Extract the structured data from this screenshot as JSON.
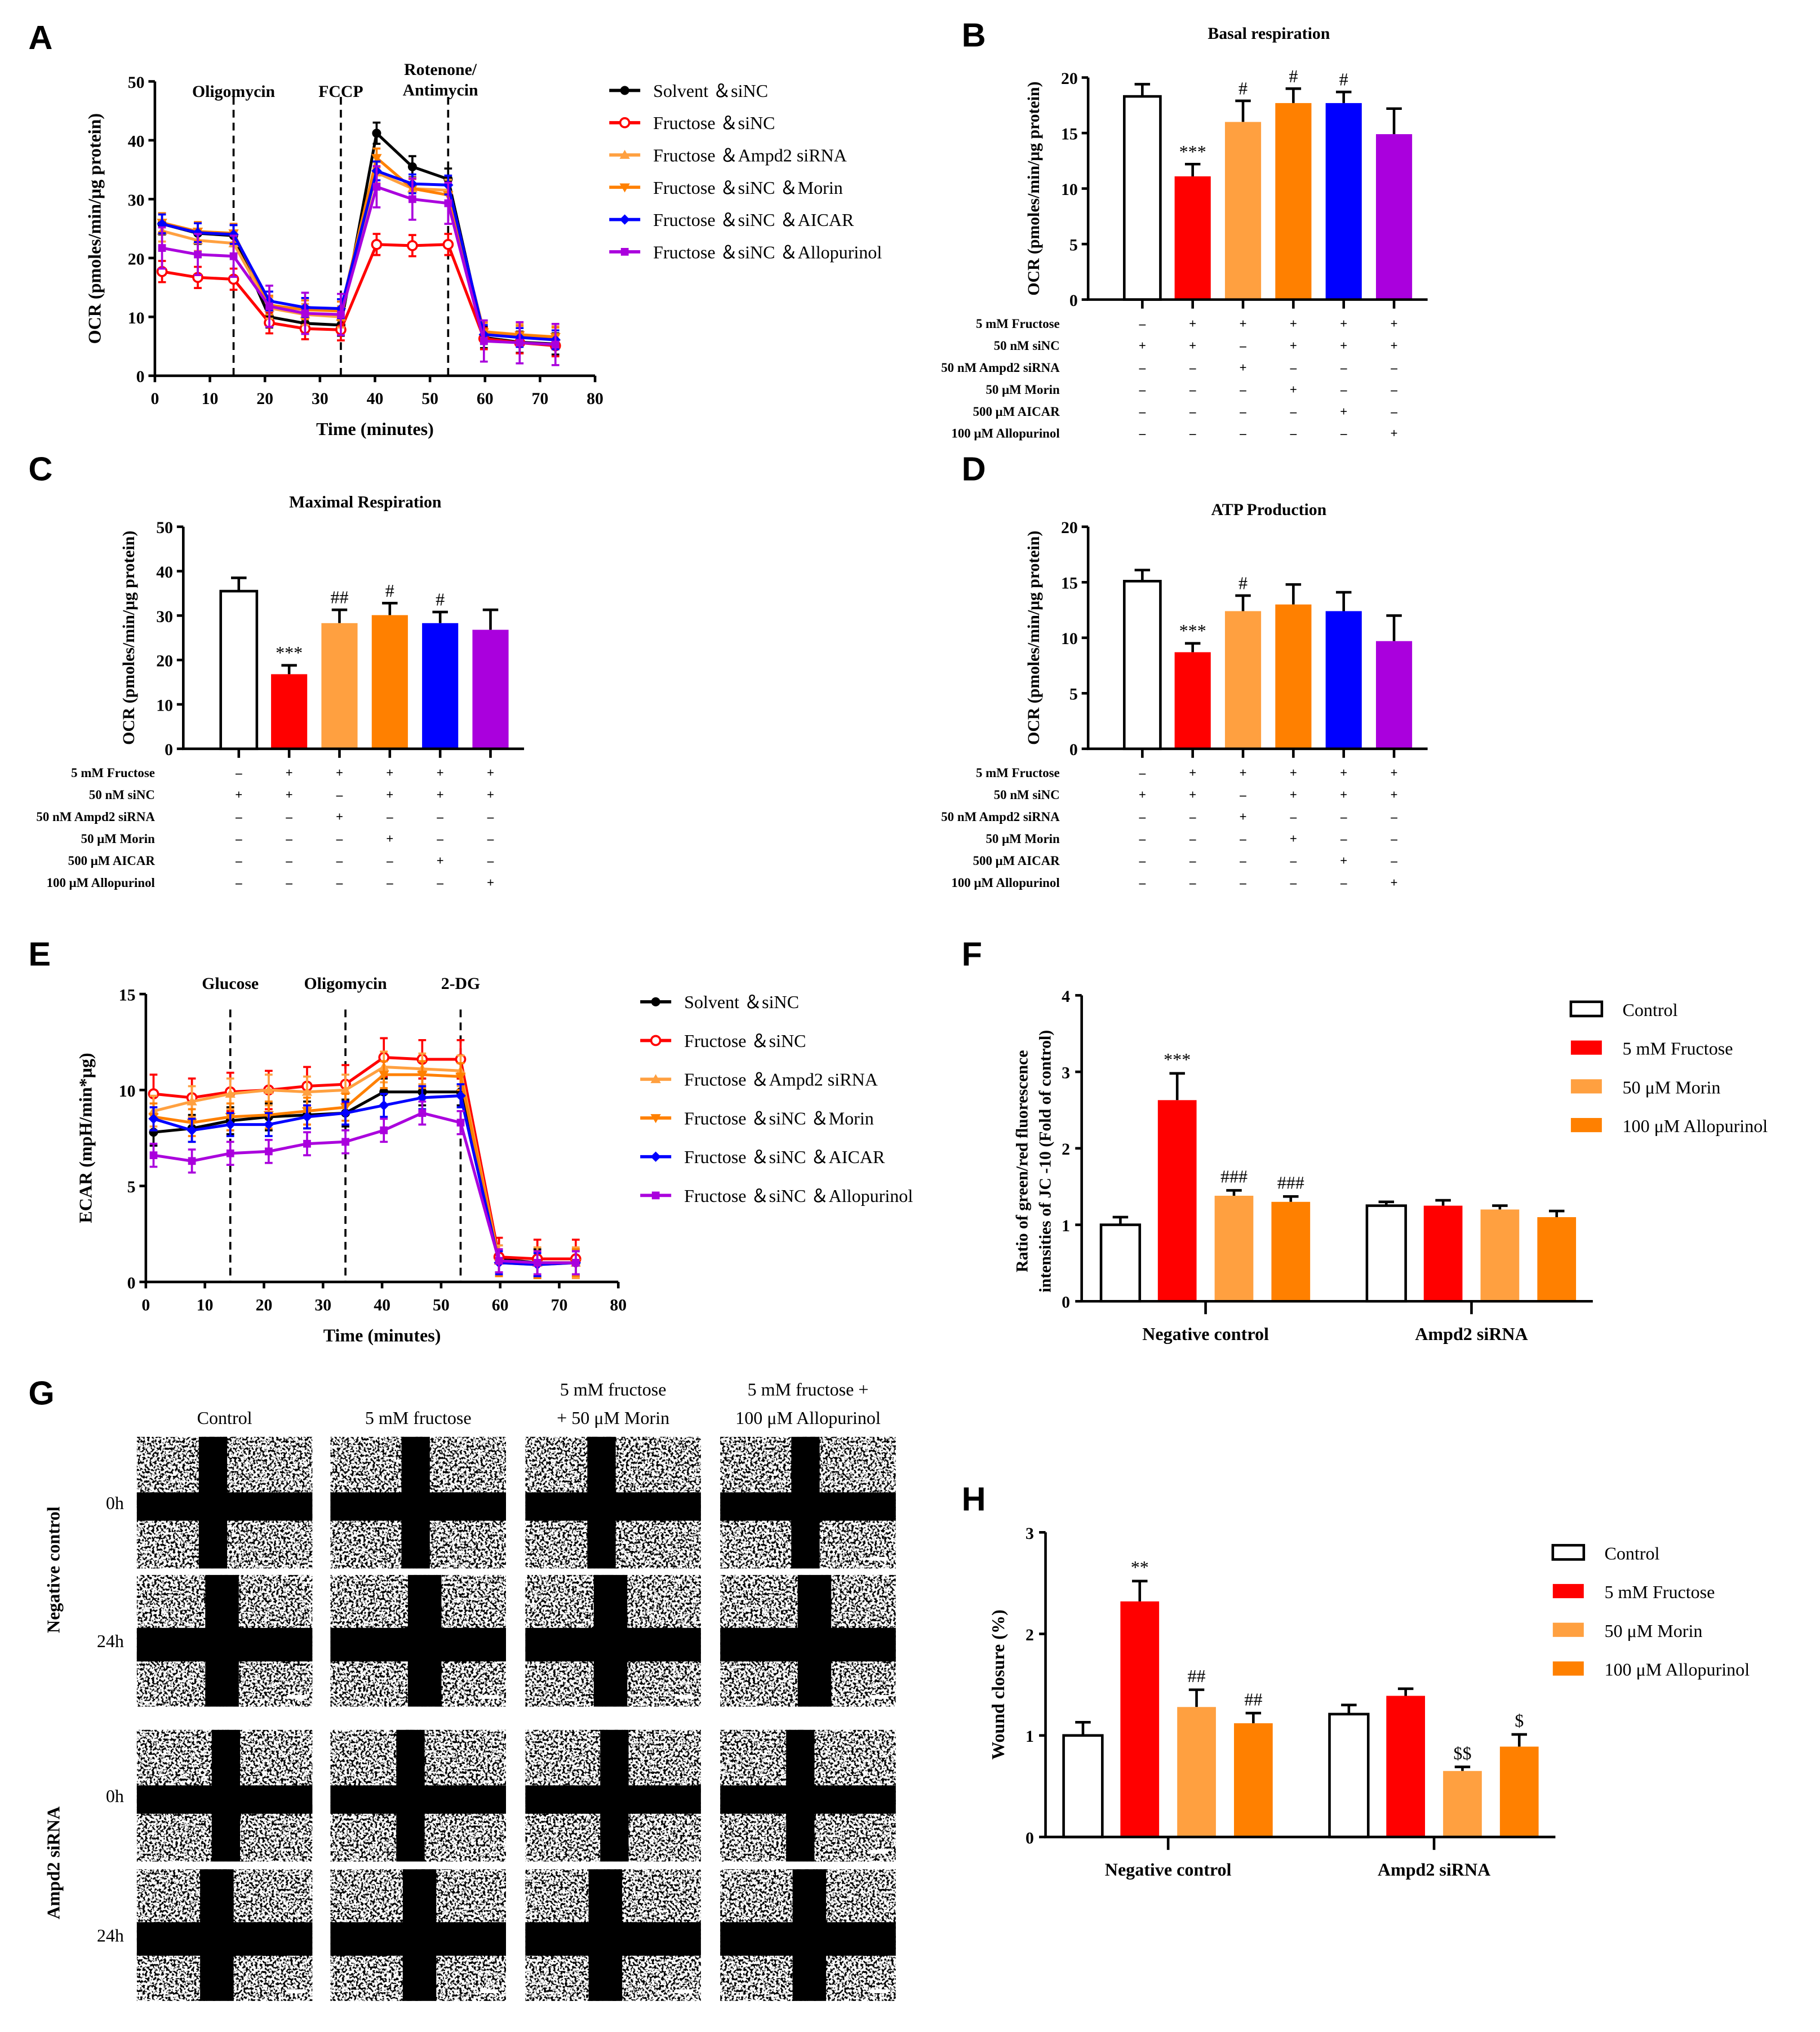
{
  "panel_labels": [
    "A",
    "B",
    "C",
    "D",
    "E",
    "F",
    "G",
    "H"
  ],
  "chart_data": [
    {
      "id": "A",
      "type": "line",
      "xlabel": "Time (minutes)",
      "ylabel": "OCR (pmoles/min/μg protein)",
      "xlim": [
        0,
        80
      ],
      "ylim": [
        0,
        50
      ],
      "xticks": [
        "0",
        "10",
        "20",
        "30",
        "40",
        "50",
        "60",
        "70",
        "80"
      ],
      "yticks": [
        "0",
        "10",
        "20",
        "30",
        "40",
        "50"
      ],
      "markers": [
        {
          "x": 14.3,
          "label": "Oligomycin"
        },
        {
          "x": 33.8,
          "label": "FCCP"
        },
        {
          "x": 53.3,
          "label": "Rotenone/",
          "label2": "Antimycin"
        }
      ],
      "x": [
        1.3,
        7.8,
        14.3,
        20.8,
        27.3,
        33.8,
        40.3,
        46.8,
        53.3,
        59.8,
        66.3,
        72.8
      ],
      "series": [
        {
          "name": "Solvent ＆siNC",
          "color": "#000000",
          "marker": "circle",
          "err": 1.8,
          "values": [
            25.8,
            24.2,
            23.8,
            10,
            8.9,
            8.6,
            41.2,
            35.5,
            33.4,
            6.5,
            5.7,
            5.4
          ]
        },
        {
          "name": "Fructose ＆siNC",
          "color": "#ff0000",
          "marker": "open-circle",
          "err": 1.8,
          "values": [
            17.7,
            16.7,
            16.4,
            9,
            8,
            7.8,
            22.3,
            22.1,
            22.3,
            6.3,
            5.6,
            5.1
          ]
        },
        {
          "name": "Fructose ＆Ampd2 siRNA",
          "color": "#ffa040",
          "marker": "triangle-up",
          "err": 1.8,
          "values": [
            24.6,
            23,
            22.5,
            11.5,
            10.4,
            10,
            34.5,
            31.8,
            31.5,
            7.5,
            7,
            6.6
          ]
        },
        {
          "name": "Fructose ＆siNC ＆Morin",
          "color": "#ff8000",
          "marker": "triangle-down",
          "err": 1.6,
          "values": [
            26,
            24.5,
            24.2,
            12,
            11.2,
            11,
            37,
            31.8,
            30.7,
            7.4,
            6.9,
            6.6
          ]
        },
        {
          "name": "Fructose ＆siNC ＆AICAR",
          "color": "#0000ff",
          "marker": "diamond",
          "err": 1.6,
          "values": [
            25.8,
            24.3,
            24,
            12.7,
            11.6,
            11.4,
            34.8,
            32.6,
            32.4,
            7,
            6.5,
            6.1
          ]
        },
        {
          "name": "Fructose ＆siNC ＆Allopurinol",
          "color": "#aa00dd",
          "marker": "square",
          "err": 3.5,
          "values": [
            21.7,
            20.6,
            20.3,
            11.8,
            10.6,
            10.4,
            32.1,
            30,
            29.3,
            5.9,
            5.6,
            5.3
          ]
        }
      ]
    },
    {
      "id": "B",
      "type": "bar",
      "title": "Basal respiration",
      "ylabel": "OCR (pmoles/min/μg protein)",
      "ylim": [
        0,
        20
      ],
      "yticks": [
        "0",
        "5",
        "10",
        "15",
        "20"
      ],
      "values": [
        18.3,
        11.1,
        16.0,
        17.7,
        17.7,
        14.9
      ],
      "errors": [
        1.1,
        1.1,
        1.9,
        1.3,
        1.0,
        2.3
      ],
      "colors": [
        "#ffffff",
        "#ff0000",
        "#ffa040",
        "#ff8000",
        "#0000ff",
        "#aa00dd"
      ],
      "annotations": [
        "",
        "***",
        "#",
        "#",
        "#",
        ""
      ],
      "treatments": [
        {
          "label": "5 mM Fructose",
          "signs": [
            "–",
            "+",
            "+",
            "+",
            "+",
            "+"
          ]
        },
        {
          "label": "50 nM siNC",
          "signs": [
            "+",
            "+",
            "–",
            "+",
            "+",
            "+"
          ]
        },
        {
          "label": "50 nM Ampd2 siRNA",
          "signs": [
            "–",
            "–",
            "+",
            "–",
            "–",
            "–"
          ]
        },
        {
          "label": "50 μM Morin",
          "signs": [
            "–",
            "–",
            "–",
            "+",
            "–",
            "–"
          ]
        },
        {
          "label": "500 μM AICAR",
          "signs": [
            "–",
            "–",
            "–",
            "–",
            "+",
            "–"
          ]
        },
        {
          "label": "100 μM Allopurinol",
          "signs": [
            "–",
            "–",
            "–",
            "–",
            "–",
            "+"
          ]
        }
      ]
    },
    {
      "id": "C",
      "type": "bar",
      "title": "Maximal Respiration",
      "ylabel": "OCR (pmoles/min/μg protein)",
      "ylim": [
        0,
        50
      ],
      "yticks": [
        "0",
        "10",
        "20",
        "30",
        "40",
        "50"
      ],
      "values": [
        35.5,
        16.8,
        28.3,
        30.1,
        28.3,
        26.8
      ],
      "errors": [
        3.0,
        2.0,
        3.0,
        2.7,
        2.5,
        4.5
      ],
      "colors": [
        "#ffffff",
        "#ff0000",
        "#ffa040",
        "#ff8000",
        "#0000ff",
        "#aa00dd"
      ],
      "annotations": [
        "",
        "***",
        "##",
        "#",
        "#",
        ""
      ],
      "treatments": [
        {
          "label": "5 mM Fructose",
          "signs": [
            "–",
            "+",
            "+",
            "+",
            "+",
            "+"
          ]
        },
        {
          "label": "50 nM siNC",
          "signs": [
            "+",
            "+",
            "–",
            "+",
            "+",
            "+"
          ]
        },
        {
          "label": "50 nM Ampd2 siRNA",
          "signs": [
            "–",
            "–",
            "+",
            "–",
            "–",
            "–"
          ]
        },
        {
          "label": "50 μM Morin",
          "signs": [
            "–",
            "–",
            "–",
            "+",
            "–",
            "–"
          ]
        },
        {
          "label": "500 μM AICAR",
          "signs": [
            "–",
            "–",
            "–",
            "–",
            "+",
            "–"
          ]
        },
        {
          "label": "100 μM Allopurinol",
          "signs": [
            "–",
            "–",
            "–",
            "–",
            "–",
            "+"
          ]
        }
      ]
    },
    {
      "id": "D",
      "type": "bar",
      "title": "ATP Production",
      "ylabel": "OCR (pmoles/min/μg protein)",
      "ylim": [
        0,
        20
      ],
      "yticks": [
        "0",
        "5",
        "10",
        "15",
        "20"
      ],
      "values": [
        15.1,
        8.7,
        12.4,
        13.0,
        12.4,
        9.7
      ],
      "errors": [
        1.0,
        0.8,
        1.4,
        1.8,
        1.7,
        2.3
      ],
      "colors": [
        "#ffffff",
        "#ff0000",
        "#ffa040",
        "#ff8000",
        "#0000ff",
        "#aa00dd"
      ],
      "annotations": [
        "",
        "***",
        "#",
        "",
        "",
        ""
      ],
      "treatments": [
        {
          "label": "5 mM Fructose",
          "signs": [
            "–",
            "+",
            "+",
            "+",
            "+",
            "+"
          ]
        },
        {
          "label": "50 nM siNC",
          "signs": [
            "+",
            "+",
            "–",
            "+",
            "+",
            "+"
          ]
        },
        {
          "label": "50 nM Ampd2 siRNA",
          "signs": [
            "–",
            "–",
            "+",
            "–",
            "–",
            "–"
          ]
        },
        {
          "label": "50 μM Morin",
          "signs": [
            "–",
            "–",
            "–",
            "+",
            "–",
            "–"
          ]
        },
        {
          "label": "500 μM AICAR",
          "signs": [
            "–",
            "–",
            "–",
            "–",
            "+",
            "–"
          ]
        },
        {
          "label": "100 μM Allopurinol",
          "signs": [
            "–",
            "–",
            "–",
            "–",
            "–",
            "+"
          ]
        }
      ]
    },
    {
      "id": "E",
      "type": "line",
      "xlabel": "Time (minutes)",
      "ylabel": "ECAR (mpH/min*μg)",
      "xlim": [
        0,
        80
      ],
      "ylim": [
        0,
        15
      ],
      "xticks": [
        "0",
        "10",
        "20",
        "30",
        "40",
        "50",
        "60",
        "70",
        "80"
      ],
      "yticks": [
        "0",
        "5",
        "10",
        "15"
      ],
      "markers": [
        {
          "x": 14.3,
          "label": "Glucose"
        },
        {
          "x": 33.8,
          "label": "Oligomycin"
        },
        {
          "x": 53.3,
          "label": "2-DG"
        }
      ],
      "x": [
        1.3,
        7.8,
        14.3,
        20.8,
        27.3,
        33.8,
        40.3,
        46.8,
        53.3,
        59.8,
        66.3,
        72.8
      ],
      "series": [
        {
          "name": "Solvent ＆siNC",
          "color": "#000000",
          "marker": "circle",
          "err": 0.7,
          "values": [
            7.8,
            8.0,
            8.4,
            8.6,
            8.7,
            8.8,
            9.9,
            9.9,
            9.9,
            1.2,
            1.0,
            1.0
          ]
        },
        {
          "name": "Fructose ＆siNC",
          "color": "#ff0000",
          "marker": "open-circle",
          "err": 1.0,
          "values": [
            9.8,
            9.6,
            9.9,
            10.0,
            10.2,
            10.3,
            11.7,
            11.6,
            11.6,
            1.3,
            1.2,
            1.2
          ]
        },
        {
          "name": "Fructose ＆Ampd2 siRNA",
          "color": "#ffa040",
          "marker": "triangle-up",
          "err": 0.8,
          "values": [
            8.9,
            9.4,
            9.8,
            10.0,
            9.9,
            10.0,
            11.2,
            11.1,
            11.0,
            1.1,
            1.0,
            1.0
          ]
        },
        {
          "name": "Fructose ＆siNC ＆Morin",
          "color": "#ff8000",
          "marker": "triangle-down",
          "err": 0.7,
          "values": [
            8.6,
            8.3,
            8.6,
            8.7,
            8.9,
            9.1,
            10.8,
            10.8,
            10.7,
            1.0,
            0.9,
            1.0
          ]
        },
        {
          "name": "Fructose ＆siNC ＆AICAR",
          "color": "#0000ff",
          "marker": "diamond",
          "err": 0.6,
          "values": [
            8.5,
            7.9,
            8.2,
            8.2,
            8.6,
            8.8,
            9.2,
            9.6,
            9.7,
            1.0,
            0.9,
            1.0
          ]
        },
        {
          "name": "Fructose ＆siNC ＆Allopurinol",
          "color": "#aa00dd",
          "marker": "square",
          "err": 0.6,
          "values": [
            6.6,
            6.3,
            6.7,
            6.8,
            7.2,
            7.3,
            7.9,
            8.8,
            8.3,
            1.1,
            1.0,
            1.0
          ]
        }
      ]
    },
    {
      "id": "F",
      "type": "grouped-bar",
      "ylabel": "Ratio of green/red  fluorescence",
      "ylabel2": "intensities of JC -10 (Fold of control)",
      "ylim": [
        0,
        4
      ],
      "yticks": [
        "0",
        "1",
        "2",
        "3",
        "4"
      ],
      "categories": [
        "Negative control",
        "Ampd2 siRNA"
      ],
      "series": [
        {
          "name": "Control",
          "color": "#ffffff",
          "values": [
            1.0,
            1.25
          ],
          "errors": [
            0.1,
            0.05
          ],
          "annotations": [
            "",
            ""
          ]
        },
        {
          "name": "5 mM Fructose",
          "color": "#ff0000",
          "values": [
            2.63,
            1.25
          ],
          "errors": [
            0.35,
            0.07
          ],
          "annotations": [
            "***",
            ""
          ]
        },
        {
          "name": "50 μM Morin",
          "color": "#ffa040",
          "values": [
            1.38,
            1.2
          ],
          "errors": [
            0.07,
            0.05
          ],
          "annotations": [
            "###",
            ""
          ]
        },
        {
          "name": "100 μM Allopurinol",
          "color": "#ff8000",
          "values": [
            1.3,
            1.1
          ],
          "errors": [
            0.07,
            0.08
          ],
          "annotations": [
            "###",
            ""
          ]
        }
      ]
    },
    {
      "id": "H",
      "type": "grouped-bar",
      "ylabel": "Wound closure (%)",
      "ylim": [
        0,
        3
      ],
      "yticks": [
        "0",
        "1",
        "2",
        "3"
      ],
      "categories": [
        "Negative control",
        "Ampd2 siRNA"
      ],
      "series": [
        {
          "name": "Control",
          "color": "#ffffff",
          "values": [
            1.0,
            1.21
          ],
          "errors": [
            0.13,
            0.09
          ],
          "annotations": [
            "",
            ""
          ]
        },
        {
          "name": "5 mM Fructose",
          "color": "#ff0000",
          "values": [
            2.32,
            1.39
          ],
          "errors": [
            0.2,
            0.07
          ],
          "annotations": [
            "**",
            ""
          ]
        },
        {
          "name": "50 μM Morin",
          "color": "#ffa040",
          "values": [
            1.28,
            0.65
          ],
          "errors": [
            0.17,
            0.04
          ],
          "annotations": [
            "##",
            "$$"
          ]
        },
        {
          "name": "100 μM Allopurinol",
          "color": "#ff8000",
          "values": [
            1.12,
            0.89
          ],
          "errors": [
            0.1,
            0.12
          ],
          "annotations": [
            "##",
            "$"
          ]
        }
      ]
    }
  ],
  "panel_G": {
    "columns": [
      "Control",
      "5 mM fructose",
      "5 mM fructose",
      "5 mM fructose +"
    ],
    "columns_line2": [
      "",
      "",
      "+ 50 μM Morin",
      "100 μM Allopurinol"
    ],
    "groups": [
      "Negative control",
      "Ampd2 siRNA"
    ],
    "times": [
      "0h",
      "24h",
      "0h",
      "24h"
    ]
  }
}
